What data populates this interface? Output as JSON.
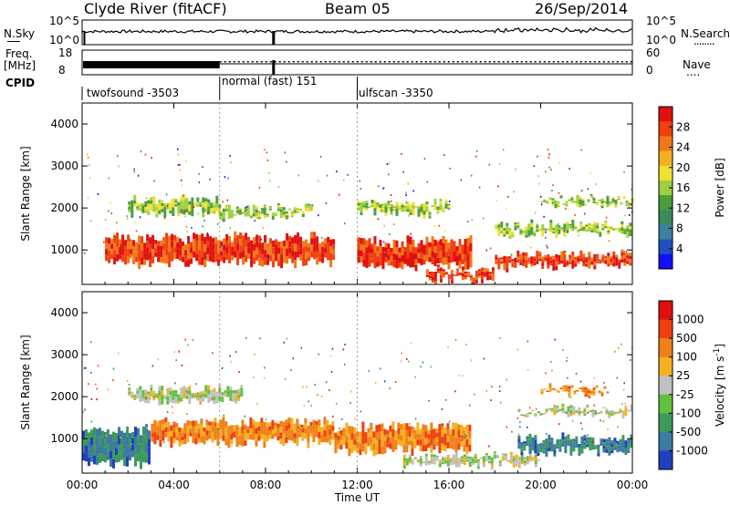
{
  "header": {
    "site": "Clyde River (fitACF)",
    "beam": "Beam 05",
    "date": "26/Sep/2014"
  },
  "noise_panel": {
    "left_label": "N.Sky",
    "right_label": "N.Search",
    "left_ticks": [
      "10^5",
      "10^0"
    ],
    "right_ticks": [
      "10^5",
      "10^0"
    ],
    "right_legend": "........"
  },
  "freq_panel": {
    "left_label_top": "Freq.",
    "left_label_unit": "[MHz]",
    "right_label": "Nave",
    "left_ticks": [
      "18",
      "8"
    ],
    "right_ticks": [
      "60",
      "0"
    ],
    "right_legend": "...."
  },
  "cpid": {
    "label": "CPID",
    "segments": [
      {
        "name": "twofsound -3503",
        "start": 0,
        "end": 6
      },
      {
        "name": "normal (fast) 151",
        "start": 6,
        "end": 12
      },
      {
        "name": "ulfscan -3350",
        "start": 12,
        "end": 24
      }
    ]
  },
  "chart_data": [
    {
      "type": "heatmap",
      "title": "",
      "ylabel": "Slant Range [km]",
      "xlabel": "",
      "x_range_hours": [
        0,
        24
      ],
      "ylim": [
        180,
        4500
      ],
      "yticks": [
        "1000",
        "2000",
        "3000",
        "4000"
      ],
      "colorbar": {
        "label": "Power [dB]",
        "ticks": [
          "4",
          "8",
          "12",
          "16",
          "20",
          "24",
          "28"
        ],
        "colors": [
          "#1010ff",
          "#2050c0",
          "#3d7fa0",
          "#3c8a5a",
          "#4c9c3a",
          "#9cd040",
          "#f0e030",
          "#f5b020",
          "#f07818",
          "#f04010",
          "#e01010"
        ]
      },
      "echo_bands": [
        {
          "x": [
            1,
            11
          ],
          "y": [
            600,
            1400
          ],
          "level": "high"
        },
        {
          "x": [
            2,
            6
          ],
          "y": [
            1800,
            2300
          ],
          "level": "medium"
        },
        {
          "x": [
            6,
            10
          ],
          "y": [
            1700,
            2100
          ],
          "level": "medium"
        },
        {
          "x": [
            12,
            17
          ],
          "y": [
            500,
            1300
          ],
          "level": "high"
        },
        {
          "x": [
            12,
            16
          ],
          "y": [
            1800,
            2200
          ],
          "level": "medium"
        },
        {
          "x": [
            18,
            24
          ],
          "y": [
            500,
            1000
          ],
          "level": "high"
        },
        {
          "x": [
            18,
            24
          ],
          "y": [
            1300,
            1700
          ],
          "level": "medium"
        },
        {
          "x": [
            20,
            24
          ],
          "y": [
            2000,
            2300
          ],
          "level": "medium"
        },
        {
          "x": [
            15,
            18
          ],
          "y": [
            200,
            600
          ],
          "level": "high"
        }
      ]
    },
    {
      "type": "heatmap",
      "title": "",
      "ylabel": "Slant Range [km]",
      "xlabel": "Time UT",
      "x_range_hours": [
        0,
        24
      ],
      "xticks": [
        "00:00",
        "04:00",
        "08:00",
        "12:00",
        "16:00",
        "20:00",
        "00:00"
      ],
      "ylim": [
        180,
        4500
      ],
      "yticks": [
        "1000",
        "2000",
        "3000",
        "4000"
      ],
      "colorbar": {
        "label": "Velocity [m s-1]",
        "unit_main": "Velocity  [m s",
        "unit_sup": "-1",
        "unit_close": "]",
        "ticks": [
          "1000",
          "500",
          "100",
          "25",
          "-25",
          "-100",
          "-500",
          "-1000"
        ],
        "colors": [
          "#2040c0",
          "#3c7aa0",
          "#3c9a5a",
          "#60c040",
          "#c0c0c0",
          "#f5b020",
          "#f08018",
          "#f04010",
          "#e01010"
        ]
      },
      "echo_bands": [
        {
          "x": [
            3,
            11
          ],
          "y": [
            800,
            1500
          ],
          "level": "toward"
        },
        {
          "x": [
            0,
            3
          ],
          "y": [
            300,
            1300
          ],
          "level": "away"
        },
        {
          "x": [
            2,
            7
          ],
          "y": [
            1800,
            2300
          ],
          "level": "ground"
        },
        {
          "x": [
            11,
            17
          ],
          "y": [
            600,
            1400
          ],
          "level": "toward"
        },
        {
          "x": [
            14,
            20
          ],
          "y": [
            300,
            700
          ],
          "level": "ground"
        },
        {
          "x": [
            19,
            24
          ],
          "y": [
            600,
            1100
          ],
          "level": "away"
        },
        {
          "x": [
            19,
            24
          ],
          "y": [
            1500,
            1800
          ],
          "level": "ground"
        },
        {
          "x": [
            20,
            23
          ],
          "y": [
            2000,
            2300
          ],
          "level": "toward"
        }
      ]
    }
  ]
}
